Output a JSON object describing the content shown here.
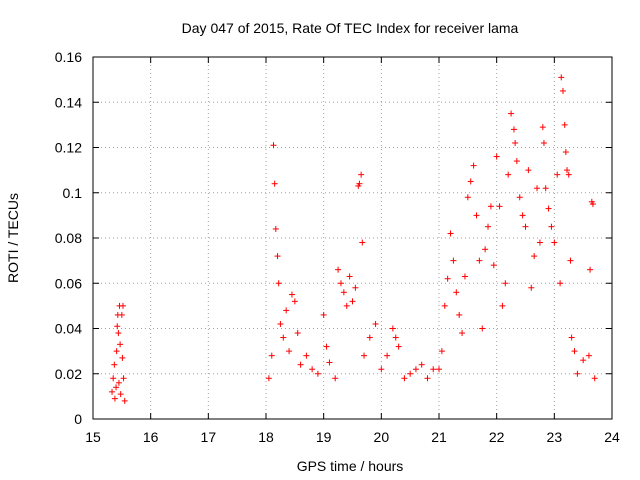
{
  "chart_data": {
    "type": "scatter",
    "title": "Day 047 of 2015, Rate Of TEC Index for receiver lama",
    "xlabel": "GPS time / hours",
    "ylabel": "ROTI / TECUs",
    "xlim": [
      15,
      24
    ],
    "ylim": [
      0,
      0.16
    ],
    "xticks": [
      "15",
      "16",
      "17",
      "18",
      "19",
      "20",
      "21",
      "22",
      "23",
      "24"
    ],
    "yticks": [
      "0",
      "0.02",
      "0.04",
      "0.06",
      "0.08",
      "0.1",
      "0.12",
      "0.14",
      "0.16"
    ],
    "grid": true,
    "marker": "+",
    "series_color": "#ff0000",
    "series": [
      {
        "name": "ROTI",
        "points": [
          [
            15.33,
            0.012
          ],
          [
            15.35,
            0.018
          ],
          [
            15.37,
            0.024
          ],
          [
            15.38,
            0.009
          ],
          [
            15.4,
            0.014
          ],
          [
            15.41,
            0.03
          ],
          [
            15.42,
            0.041
          ],
          [
            15.43,
            0.046
          ],
          [
            15.44,
            0.038
          ],
          [
            15.45,
            0.016
          ],
          [
            15.46,
            0.05
          ],
          [
            15.47,
            0.033
          ],
          [
            15.48,
            0.011
          ],
          [
            15.5,
            0.046
          ],
          [
            15.51,
            0.027
          ],
          [
            15.52,
            0.05
          ],
          [
            15.53,
            0.018
          ],
          [
            15.55,
            0.008
          ],
          [
            18.05,
            0.018
          ],
          [
            18.1,
            0.028
          ],
          [
            18.13,
            0.121
          ],
          [
            18.15,
            0.104
          ],
          [
            18.17,
            0.084
          ],
          [
            18.2,
            0.072
          ],
          [
            18.22,
            0.06
          ],
          [
            18.25,
            0.042
          ],
          [
            18.3,
            0.036
          ],
          [
            18.35,
            0.048
          ],
          [
            18.4,
            0.03
          ],
          [
            18.45,
            0.055
          ],
          [
            18.5,
            0.052
          ],
          [
            18.55,
            0.038
          ],
          [
            18.6,
            0.024
          ],
          [
            18.7,
            0.028
          ],
          [
            18.8,
            0.022
          ],
          [
            18.9,
            0.02
          ],
          [
            19.0,
            0.046
          ],
          [
            19.05,
            0.032
          ],
          [
            19.1,
            0.025
          ],
          [
            19.2,
            0.018
          ],
          [
            19.25,
            0.066
          ],
          [
            19.3,
            0.06
          ],
          [
            19.35,
            0.056
          ],
          [
            19.4,
            0.05
          ],
          [
            19.45,
            0.063
          ],
          [
            19.5,
            0.052
          ],
          [
            19.55,
            0.058
          ],
          [
            19.6,
            0.103
          ],
          [
            19.62,
            0.104
          ],
          [
            19.65,
            0.108
          ],
          [
            19.67,
            0.078
          ],
          [
            19.7,
            0.028
          ],
          [
            19.8,
            0.036
          ],
          [
            19.9,
            0.042
          ],
          [
            20.0,
            0.022
          ],
          [
            20.1,
            0.028
          ],
          [
            20.2,
            0.04
          ],
          [
            20.25,
            0.036
          ],
          [
            20.3,
            0.032
          ],
          [
            20.4,
            0.018
          ],
          [
            20.5,
            0.02
          ],
          [
            20.6,
            0.022
          ],
          [
            20.7,
            0.024
          ],
          [
            20.8,
            0.018
          ],
          [
            20.9,
            0.022
          ],
          [
            21.0,
            0.022
          ],
          [
            21.05,
            0.03
          ],
          [
            21.1,
            0.05
          ],
          [
            21.15,
            0.062
          ],
          [
            21.2,
            0.082
          ],
          [
            21.25,
            0.07
          ],
          [
            21.3,
            0.056
          ],
          [
            21.35,
            0.046
          ],
          [
            21.4,
            0.038
          ],
          [
            21.45,
            0.063
          ],
          [
            21.5,
            0.098
          ],
          [
            21.55,
            0.105
          ],
          [
            21.6,
            0.112
          ],
          [
            21.65,
            0.09
          ],
          [
            21.7,
            0.07
          ],
          [
            21.75,
            0.04
          ],
          [
            21.8,
            0.075
          ],
          [
            21.85,
            0.085
          ],
          [
            21.9,
            0.094
          ],
          [
            21.95,
            0.068
          ],
          [
            22.0,
            0.116
          ],
          [
            22.05,
            0.094
          ],
          [
            22.1,
            0.05
          ],
          [
            22.15,
            0.06
          ],
          [
            22.2,
            0.108
          ],
          [
            22.25,
            0.135
          ],
          [
            22.3,
            0.128
          ],
          [
            22.32,
            0.122
          ],
          [
            22.35,
            0.114
          ],
          [
            22.4,
            0.098
          ],
          [
            22.45,
            0.09
          ],
          [
            22.5,
            0.085
          ],
          [
            22.55,
            0.11
          ],
          [
            22.6,
            0.058
          ],
          [
            22.65,
            0.072
          ],
          [
            22.7,
            0.102
          ],
          [
            22.75,
            0.078
          ],
          [
            22.8,
            0.129
          ],
          [
            22.82,
            0.122
          ],
          [
            22.85,
            0.102
          ],
          [
            22.9,
            0.093
          ],
          [
            22.95,
            0.085
          ],
          [
            23.0,
            0.078
          ],
          [
            23.05,
            0.108
          ],
          [
            23.1,
            0.06
          ],
          [
            23.12,
            0.151
          ],
          [
            23.15,
            0.145
          ],
          [
            23.18,
            0.13
          ],
          [
            23.2,
            0.118
          ],
          [
            23.22,
            0.11
          ],
          [
            23.25,
            0.108
          ],
          [
            23.28,
            0.07
          ],
          [
            23.3,
            0.036
          ],
          [
            23.35,
            0.03
          ],
          [
            23.4,
            0.02
          ],
          [
            23.5,
            0.026
          ],
          [
            23.6,
            0.028
          ],
          [
            23.62,
            0.066
          ],
          [
            23.65,
            0.096
          ],
          [
            23.67,
            0.095
          ],
          [
            23.7,
            0.018
          ]
        ]
      }
    ]
  }
}
